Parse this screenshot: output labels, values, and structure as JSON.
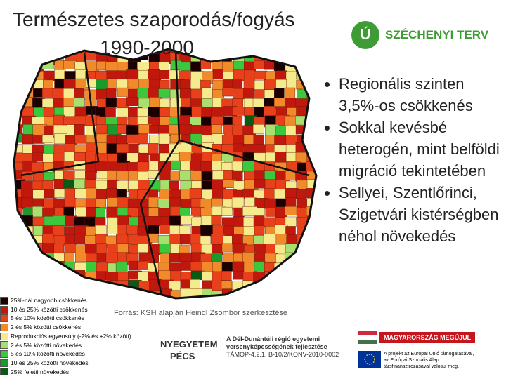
{
  "header": {
    "title": [
      "Természetes szaporodás/fogyás",
      "1990-2000"
    ]
  },
  "logo": {
    "mark": "Ú",
    "name": "SZÉCHENYI TERV"
  },
  "bullets": [
    "Regionális szinten 3,5%-os csökkenés",
    "Sokkal kevésbé heterogén, mint belföldi migráció tekintetében",
    "Sellyei, Szentlőrinci, Szigetvári kistérségben néhol növekedés"
  ],
  "legend": [
    {
      "label": "25%-nál nagyobb csökkenés",
      "color": "#1a0000"
    },
    {
      "label": "10 és 25% közötti csökkenés",
      "color": "#c0180c"
    },
    {
      "label": "5 és 10% közötti csökkenés",
      "color": "#e8401a"
    },
    {
      "label": "2 és 5% közötti csökkenés",
      "color": "#f08a2a"
    },
    {
      "label": "Reprodukciós egyensúly (-2% és +2% között)",
      "color": "#f6eb8c"
    },
    {
      "label": "2 és 5% közötti növekedés",
      "color": "#a8e070"
    },
    {
      "label": "5 és 10% közötti növekedés",
      "color": "#3cc83c"
    },
    {
      "label": "10 és 25% közötti növekedés",
      "color": "#1a9a2a"
    },
    {
      "label": "25% feletti növekedés",
      "color": "#0a5a14"
    }
  ],
  "source": "Forrás: KSH alapján Heindl Zsombor szerkesztése",
  "footer": {
    "university": [
      "NYEGYETEM",
      "PÉCS"
    ],
    "project": [
      "A Dél-Dunántúli régió egyetemi",
      "versenyképességének fejlesztése",
      "TÁMOP-4.2.1. B-10/2/KONV-2010-0002"
    ],
    "hungary": "MAGYARORSZÁG MEGÚJUL",
    "eu": [
      "A projekt az Európai Unió támogatásával,",
      "az Európai Szociális Alap",
      "társfinanszírozásával valósul meg."
    ]
  }
}
